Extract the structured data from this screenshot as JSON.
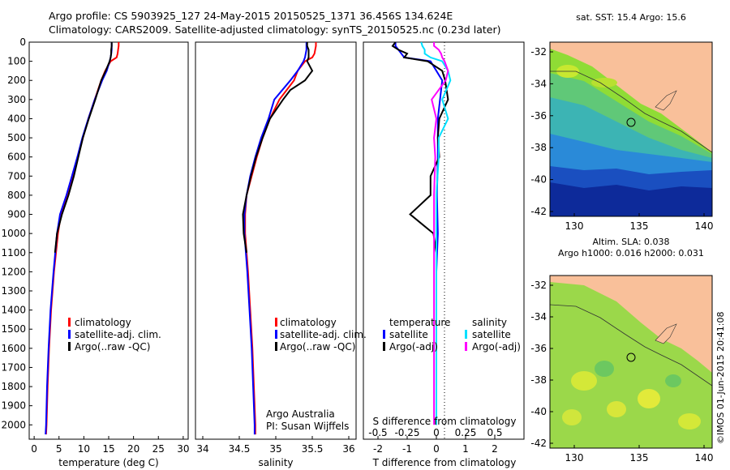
{
  "titles": {
    "line1": "Argo profile: CS 5903925_127 24-May-2015 20150525_1371 36.456S 134.624E",
    "line2": "Climatology: CARS2009. Satellite-adjusted climatology: synTS_20150525.nc (0.23d later)"
  },
  "stamp": "©IMOS 01-Jun-2015 20:41:08",
  "credit": {
    "line1": "Argo Australia",
    "line2": "PI: Susan Wijffels"
  },
  "colors": {
    "climatology": "#ff0000",
    "satellite": "#0000ff",
    "argo": "#000000",
    "sat_diff": "#00e0ff",
    "sal_diff": "#ff00ff",
    "land": "#f9c09a"
  },
  "chart_data": [
    {
      "type": "line",
      "id": "temperature",
      "xlabel": "temperature (deg C)",
      "ylim": [
        0,
        2075
      ],
      "xlim": [
        -1,
        31
      ],
      "xticks": [
        "0",
        "5",
        "10",
        "15",
        "20",
        "25",
        "30"
      ],
      "yticks": [
        "0",
        "100",
        "200",
        "300",
        "400",
        "500",
        "600",
        "700",
        "800",
        "900",
        "1000",
        "1100",
        "1200",
        "1300",
        "1400",
        "1500",
        "1600",
        "1700",
        "1800",
        "1900",
        "2000"
      ],
      "legend": [
        "climatology",
        "satellite-adj. clim.",
        "Argo(..raw -QC)"
      ],
      "series": [
        {
          "name": "climatology",
          "color_key": "climatology",
          "depth": [
            0,
            20,
            40,
            60,
            80,
            100,
            150,
            200,
            300,
            400,
            500,
            600,
            700,
            800,
            900,
            1000,
            1200,
            1400,
            1600,
            1800,
            2000,
            2050
          ],
          "values": [
            17.0,
            17.0,
            16.9,
            16.8,
            16.6,
            15.4,
            14.3,
            13.5,
            12.2,
            10.9,
            9.8,
            8.8,
            7.8,
            6.6,
            5.4,
            4.8,
            4.0,
            3.4,
            3.0,
            2.7,
            2.5,
            2.4
          ]
        },
        {
          "name": "satellite-adj. clim.",
          "color_key": "satellite",
          "depth": [
            0,
            20,
            40,
            60,
            80,
            100,
            150,
            200,
            300,
            400,
            500,
            600,
            700,
            800,
            900,
            1000,
            1200,
            1400,
            1600,
            1800,
            2000,
            2050
          ],
          "values": [
            15.6,
            15.6,
            15.6,
            15.5,
            15.4,
            15.2,
            14.6,
            13.7,
            12.2,
            10.9,
            9.7,
            8.7,
            7.6,
            6.5,
            5.2,
            4.6,
            3.9,
            3.3,
            2.9,
            2.6,
            2.4,
            2.3
          ]
        },
        {
          "name": "Argo(..raw -QC)",
          "color_key": "argo",
          "depth": [
            0,
            20,
            40,
            60,
            80,
            100,
            150,
            200,
            300,
            400,
            500,
            600,
            700,
            800,
            900,
            1000,
            1100
          ],
          "values": [
            15.6,
            15.6,
            15.5,
            15.5,
            15.4,
            15.2,
            14.4,
            13.5,
            12.3,
            11.0,
            9.8,
            8.9,
            8.0,
            6.9,
            5.6,
            4.6,
            4.2
          ]
        }
      ]
    },
    {
      "type": "line",
      "id": "salinity",
      "xlabel": "salinity",
      "ylim": [
        0,
        2075
      ],
      "xlim": [
        33.9,
        36.1
      ],
      "xticks": [
        "34",
        "34.5",
        "35",
        "35.5",
        "36"
      ],
      "legend": [
        "climatology",
        "satellite-adj. clim.",
        "Argo(..raw -QC)"
      ],
      "series": [
        {
          "name": "climatology",
          "color_key": "climatology",
          "depth": [
            0,
            20,
            40,
            60,
            80,
            100,
            150,
            200,
            300,
            400,
            500,
            600,
            700,
            800,
            900,
            1000,
            1200,
            1400,
            1600,
            1800,
            2000,
            2050
          ],
          "values": [
            35.55,
            35.55,
            35.54,
            35.53,
            35.5,
            35.4,
            35.3,
            35.25,
            35.05,
            34.92,
            34.82,
            34.74,
            34.67,
            34.6,
            34.58,
            34.58,
            34.62,
            34.65,
            34.68,
            34.7,
            34.72,
            34.72
          ]
        },
        {
          "name": "satellite-adj. clim.",
          "color_key": "satellite",
          "depth": [
            0,
            20,
            40,
            60,
            80,
            100,
            150,
            200,
            300,
            400,
            500,
            600,
            700,
            800,
            900,
            1000,
            1200,
            1400,
            1600,
            1800,
            2000,
            2050
          ],
          "values": [
            35.42,
            35.42,
            35.42,
            35.41,
            35.4,
            35.38,
            35.3,
            35.2,
            34.98,
            34.9,
            34.8,
            34.72,
            34.65,
            34.6,
            34.57,
            34.57,
            34.61,
            34.64,
            34.67,
            34.69,
            34.71,
            34.71
          ]
        },
        {
          "name": "Argo(..raw -QC)",
          "color_key": "argo",
          "depth": [
            0,
            20,
            40,
            60,
            80,
            100,
            150,
            200,
            250,
            300,
            400,
            500,
            600,
            700,
            800,
            900,
            1000,
            1100
          ],
          "values": [
            35.43,
            35.43,
            35.45,
            35.45,
            35.45,
            35.43,
            35.5,
            35.4,
            35.2,
            35.1,
            34.92,
            34.82,
            34.73,
            34.66,
            34.6,
            34.55,
            34.56,
            34.6
          ]
        }
      ]
    },
    {
      "type": "line",
      "id": "difference",
      "xlabel": "T difference from climatology",
      "xlabel2": "S difference from climatology",
      "xlim": [
        -2.5,
        3
      ],
      "xticks": [
        "-2",
        "-1",
        "0",
        "1",
        "2"
      ],
      "xticks_top": [
        "-0.5",
        "-0.25",
        "0",
        "0.25",
        "0.5"
      ],
      "legend_headers": [
        "temperature",
        "salinity"
      ],
      "legend_t": [
        "satellite",
        "Argo(-adj)"
      ],
      "legend_s": [
        "satellite",
        "Argo(-adj)"
      ],
      "series": [
        {
          "name": "T satellite",
          "color_key": "satellite",
          "depth": [
            0,
            20,
            40,
            60,
            80,
            100,
            200,
            400,
            600,
            800,
            1000,
            1200,
            1600,
            2000
          ],
          "values": [
            -1.4,
            -1.4,
            -1.3,
            -1.2,
            -1.1,
            -0.2,
            0.2,
            0.05,
            0.05,
            0.02,
            0.05,
            0.0,
            0.0,
            0.0
          ]
        },
        {
          "name": "T Argo(-adj)",
          "color_key": "argo",
          "depth": [
            0,
            20,
            40,
            60,
            80,
            100,
            150,
            200,
            300,
            400,
            500,
            600,
            700,
            800,
            900,
            950,
            1000,
            1100
          ],
          "values": [
            -1.4,
            -1.5,
            -1.3,
            -1.0,
            -1.1,
            -0.3,
            0.2,
            0.3,
            0.4,
            0.1,
            0.05,
            0.1,
            -0.2,
            -0.2,
            -0.9,
            -0.5,
            -0.1,
            0.0
          ]
        },
        {
          "name": "S satellite",
          "color_key": "sat_diff",
          "depth": [
            0,
            20,
            40,
            60,
            80,
            100,
            150,
            200,
            300,
            400,
            500,
            600,
            800,
            1000,
            1200,
            1600,
            2000
          ],
          "values": [
            -0.13,
            -0.12,
            -0.1,
            -0.1,
            -0.05,
            0.05,
            0.1,
            0.12,
            0.05,
            0.1,
            0.02,
            0.02,
            0.0,
            0.0,
            0.0,
            0.0,
            0.0
          ]
        },
        {
          "name": "S Argo(-adj)",
          "color_key": "sal_diff",
          "depth": [
            0,
            20,
            40,
            60,
            80,
            100,
            150,
            200,
            300,
            400,
            500,
            600,
            800,
            1000,
            1200,
            1600,
            2000
          ],
          "values": [
            -0.02,
            -0.02,
            0.02,
            0.04,
            0.05,
            0.07,
            0.1,
            0.08,
            -0.04,
            0.0,
            -0.02,
            -0.01,
            -0.02,
            -0.02,
            -0.02,
            -0.02,
            -0.02
          ]
        }
      ]
    }
  ],
  "maps": {
    "sst": {
      "title": "sat. SST: 15.4  Argo: 15.6",
      "xticks": [
        "130",
        "135",
        "140"
      ],
      "yticks": [
        "-32",
        "-34",
        "-36",
        "-38",
        "-40",
        "-42"
      ]
    },
    "sla": {
      "title1": "Altim. SLA: 0.038",
      "title2": "Argo h1000: 0.016 h2000: 0.031",
      "xticks": [
        "130",
        "135",
        "140"
      ],
      "yticks": [
        "-32",
        "-34",
        "-36",
        "-38",
        "-40",
        "-42"
      ]
    }
  }
}
